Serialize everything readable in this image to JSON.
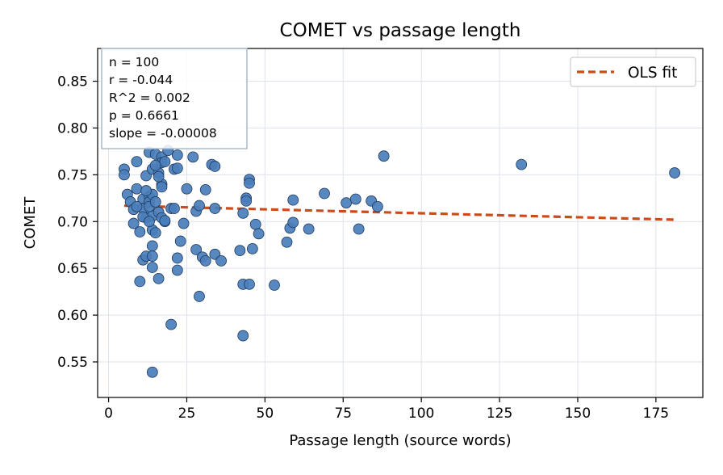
{
  "chart_data": {
    "type": "scatter",
    "title": "COMET vs passage length",
    "xlabel": "Passage length (source words)",
    "ylabel": "COMET",
    "xlim": [
      -3.5,
      190
    ],
    "ylim": [
      0.512,
      0.885
    ],
    "xticks": [
      0,
      25,
      50,
      75,
      100,
      125,
      150,
      175
    ],
    "yticks": [
      0.55,
      0.6,
      0.65,
      0.7,
      0.75,
      0.8,
      0.85
    ],
    "ytick_labels": [
      "0.55",
      "0.60",
      "0.65",
      "0.70",
      "0.75",
      "0.80",
      "0.85"
    ],
    "grid": true,
    "legend": {
      "position": "top-right",
      "entries": [
        "OLS fit"
      ]
    },
    "stats_box": [
      "n = 100",
      "r = -0.044",
      "R^2 = 0.002",
      "p = 0.6661",
      "slope = -0.00008"
    ],
    "colors": {
      "points": "#4a7ebb",
      "point_edge": "#1f3a5f",
      "fit": "#cc4c17",
      "grid": "#dde3ea"
    },
    "fit_line": {
      "x": [
        5,
        181
      ],
      "y": [
        0.7169,
        0.702
      ]
    },
    "points": [
      [
        5,
        0.756
      ],
      [
        5,
        0.75
      ],
      [
        6,
        0.729
      ],
      [
        7,
        0.721
      ],
      [
        8,
        0.713
      ],
      [
        8,
        0.698
      ],
      [
        9,
        0.764
      ],
      [
        9,
        0.735
      ],
      [
        10,
        0.689
      ],
      [
        10,
        0.636
      ],
      [
        11,
        0.724
      ],
      [
        11,
        0.714
      ],
      [
        11,
        0.659
      ],
      [
        12,
        0.749
      ],
      [
        12,
        0.704
      ],
      [
        12,
        0.663
      ],
      [
        13,
        0.774
      ],
      [
        13,
        0.727
      ],
      [
        13,
        0.721
      ],
      [
        14,
        0.756
      ],
      [
        14,
        0.729
      ],
      [
        14,
        0.706
      ],
      [
        14,
        0.691
      ],
      [
        14,
        0.674
      ],
      [
        14,
        0.663
      ],
      [
        14,
        0.651
      ],
      [
        14,
        0.539
      ],
      [
        15,
        0.772
      ],
      [
        15,
        0.688
      ],
      [
        16,
        0.752
      ],
      [
        16,
        0.71
      ],
      [
        16,
        0.639
      ],
      [
        17,
        0.769
      ],
      [
        17,
        0.763
      ],
      [
        17,
        0.74
      ],
      [
        17,
        0.737
      ],
      [
        17,
        0.704
      ],
      [
        18,
        0.764
      ],
      [
        18,
        0.7
      ],
      [
        19,
        0.776
      ],
      [
        20,
        0.714
      ],
      [
        20,
        0.59
      ],
      [
        21,
        0.756
      ],
      [
        22,
        0.771
      ],
      [
        22,
        0.757
      ],
      [
        22,
        0.661
      ],
      [
        22,
        0.648
      ],
      [
        23,
        0.679
      ],
      [
        24,
        0.698
      ],
      [
        25,
        0.735
      ],
      [
        27,
        0.769
      ],
      [
        28,
        0.711
      ],
      [
        28,
        0.67
      ],
      [
        29,
        0.717
      ],
      [
        29,
        0.62
      ],
      [
        30,
        0.662
      ],
      [
        31,
        0.734
      ],
      [
        31,
        0.658
      ],
      [
        33,
        0.761
      ],
      [
        34,
        0.759
      ],
      [
        34,
        0.714
      ],
      [
        34,
        0.665
      ],
      [
        36,
        0.658
      ],
      [
        42,
        0.669
      ],
      [
        43,
        0.709
      ],
      [
        43,
        0.633
      ],
      [
        43,
        0.578
      ],
      [
        44,
        0.725
      ],
      [
        44,
        0.722
      ],
      [
        45,
        0.745
      ],
      [
        45,
        0.741
      ],
      [
        45,
        0.633
      ],
      [
        46,
        0.671
      ],
      [
        47,
        0.697
      ],
      [
        48,
        0.687
      ],
      [
        53,
        0.632
      ],
      [
        57,
        0.678
      ],
      [
        58,
        0.693
      ],
      [
        59,
        0.723
      ],
      [
        59,
        0.699
      ],
      [
        64,
        0.692
      ],
      [
        69,
        0.73
      ],
      [
        76,
        0.72
      ],
      [
        79,
        0.724
      ],
      [
        80,
        0.692
      ],
      [
        84,
        0.722
      ],
      [
        86,
        0.716
      ],
      [
        88,
        0.77
      ],
      [
        132,
        0.761
      ],
      [
        181,
        0.752
      ],
      [
        11,
        0.705
      ],
      [
        13,
        0.716
      ],
      [
        15,
        0.76
      ],
      [
        16,
        0.748
      ],
      [
        18,
        0.701
      ],
      [
        21,
        0.714
      ],
      [
        12,
        0.733
      ],
      [
        9,
        0.716
      ],
      [
        15,
        0.721
      ],
      [
        13,
        0.7
      ]
    ]
  }
}
